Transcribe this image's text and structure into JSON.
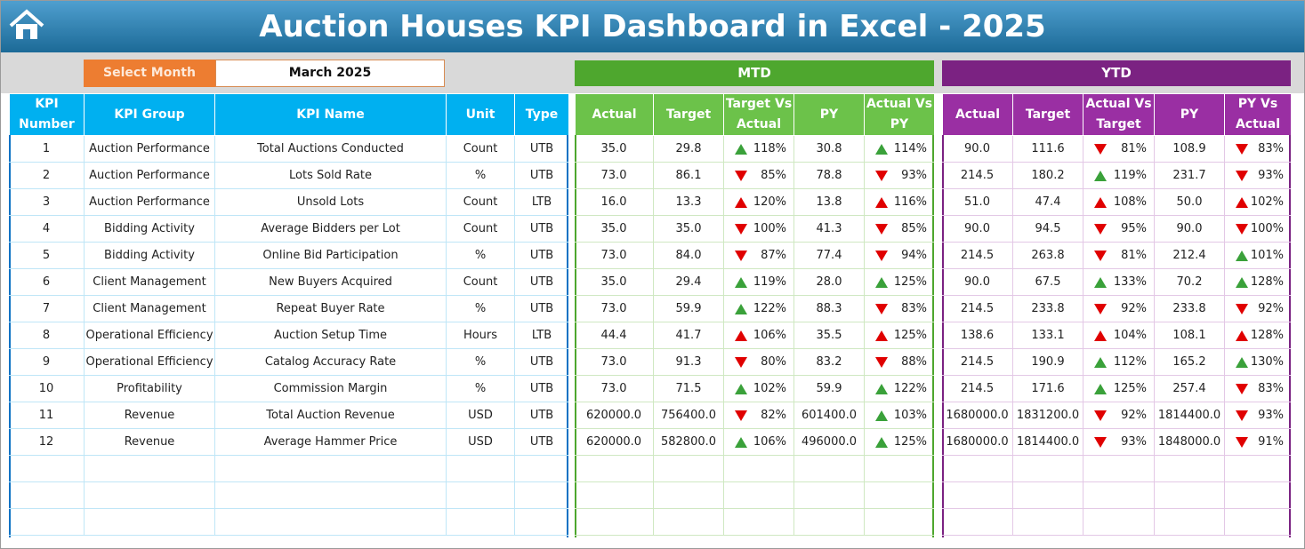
{
  "header": {
    "title": "Auction Houses KPI Dashboard in Excel - 2025"
  },
  "filter": {
    "label": "Select Month",
    "value": "March 2025"
  },
  "sections": {
    "mtd": "MTD",
    "ytd": "YTD"
  },
  "table": {
    "columns": [
      "KPI Number",
      "KPI Group",
      "KPI Name",
      "Unit",
      "Type",
      "Actual",
      "Target",
      "Target Vs Actual",
      "PY",
      "Actual Vs PY",
      "Actual",
      "Target",
      "Actual Vs Target",
      "PY",
      "PY Vs Actual"
    ],
    "rows": [
      {
        "cells": [
          "1",
          "Auction Performance",
          "Total Auctions Conducted",
          "Count",
          "UTB",
          "35.0",
          "29.8",
          "118%",
          "30.8",
          "114%",
          "90.0",
          "111.6",
          "81%",
          "108.9",
          "83%"
        ],
        "arrows": [
          "up-green",
          "up-green",
          "down-red",
          "down-red"
        ]
      },
      {
        "cells": [
          "2",
          "Auction Performance",
          "Lots Sold Rate",
          "%",
          "UTB",
          "73.0",
          "86.1",
          "85%",
          "78.8",
          "93%",
          "214.5",
          "180.2",
          "119%",
          "231.7",
          "93%"
        ],
        "arrows": [
          "down-red",
          "down-red",
          "up-green",
          "down-red"
        ]
      },
      {
        "cells": [
          "3",
          "Auction Performance",
          "Unsold Lots",
          "Count",
          "LTB",
          "16.0",
          "13.3",
          "120%",
          "13.8",
          "116%",
          "51.0",
          "47.4",
          "108%",
          "50.0",
          "102%"
        ],
        "arrows": [
          "up-red",
          "up-red",
          "up-red",
          "up-red"
        ]
      },
      {
        "cells": [
          "4",
          "Bidding Activity",
          "Average Bidders per Lot",
          "Count",
          "UTB",
          "35.0",
          "35.0",
          "100%",
          "41.3",
          "85%",
          "90.0",
          "94.5",
          "95%",
          "90.0",
          "100%"
        ],
        "arrows": [
          "down-red",
          "down-red",
          "down-red",
          "down-red"
        ]
      },
      {
        "cells": [
          "5",
          "Bidding Activity",
          "Online Bid Participation",
          "%",
          "UTB",
          "73.0",
          "84.0",
          "87%",
          "77.4",
          "94%",
          "214.5",
          "263.8",
          "81%",
          "212.4",
          "101%"
        ],
        "arrows": [
          "down-red",
          "down-red",
          "down-red",
          "up-green"
        ]
      },
      {
        "cells": [
          "6",
          "Client Management",
          "New Buyers Acquired",
          "Count",
          "UTB",
          "35.0",
          "29.4",
          "119%",
          "28.0",
          "125%",
          "90.0",
          "67.5",
          "133%",
          "70.2",
          "128%"
        ],
        "arrows": [
          "up-green",
          "up-green",
          "up-green",
          "up-green"
        ]
      },
      {
        "cells": [
          "7",
          "Client Management",
          "Repeat Buyer Rate",
          "%",
          "UTB",
          "73.0",
          "59.9",
          "122%",
          "88.3",
          "83%",
          "214.5",
          "233.8",
          "92%",
          "233.8",
          "92%"
        ],
        "arrows": [
          "up-green",
          "down-red",
          "down-red",
          "down-red"
        ]
      },
      {
        "cells": [
          "8",
          "Operational Efficiency",
          "Auction Setup Time",
          "Hours",
          "LTB",
          "44.4",
          "41.7",
          "106%",
          "35.5",
          "125%",
          "138.6",
          "133.1",
          "104%",
          "108.1",
          "128%"
        ],
        "arrows": [
          "up-red",
          "up-red",
          "up-red",
          "up-red"
        ]
      },
      {
        "cells": [
          "9",
          "Operational Efficiency",
          "Catalog Accuracy Rate",
          "%",
          "UTB",
          "73.0",
          "91.3",
          "80%",
          "83.2",
          "88%",
          "214.5",
          "190.9",
          "112%",
          "165.2",
          "130%"
        ],
        "arrows": [
          "down-red",
          "down-red",
          "up-green",
          "up-green"
        ]
      },
      {
        "cells": [
          "10",
          "Profitability",
          "Commission Margin",
          "%",
          "UTB",
          "73.0",
          "71.5",
          "102%",
          "59.9",
          "122%",
          "214.5",
          "171.6",
          "125%",
          "257.4",
          "83%"
        ],
        "arrows": [
          "up-green",
          "up-green",
          "up-green",
          "down-red"
        ]
      },
      {
        "cells": [
          "11",
          "Revenue",
          "Total Auction Revenue",
          "USD",
          "UTB",
          "620000.0",
          "756400.0",
          "82%",
          "601400.0",
          "103%",
          "1680000.0",
          "1831200.0",
          "92%",
          "1814400.0",
          "93%"
        ],
        "arrows": [
          "down-red",
          "up-green",
          "down-red",
          "down-red"
        ]
      },
      {
        "cells": [
          "12",
          "Revenue",
          "Average Hammer Price",
          "USD",
          "UTB",
          "620000.0",
          "582800.0",
          "106%",
          "496000.0",
          "125%",
          "1680000.0",
          "1814400.0",
          "93%",
          "1848000.0",
          "91%"
        ],
        "arrows": [
          "up-green",
          "up-green",
          "down-red",
          "down-red"
        ]
      }
    ]
  }
}
